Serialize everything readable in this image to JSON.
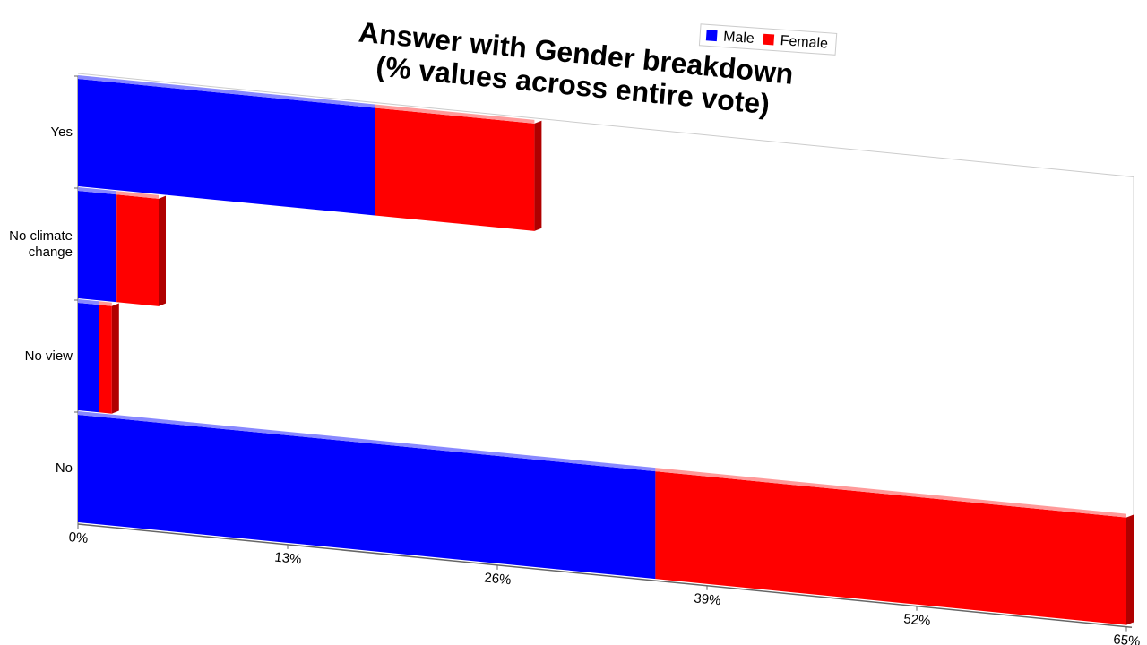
{
  "chart_data": {
    "type": "bar",
    "orientation": "horizontal",
    "stacked": true,
    "title": [
      "Answer with Gender breakdown",
      "(% values across entire vote)"
    ],
    "categories": [
      "Yes",
      "No climate change",
      "No view",
      "No"
    ],
    "series": [
      {
        "name": "Male",
        "color": "#0000ff",
        "values": [
          18.4,
          2.4,
          1.3,
          35.8
        ]
      },
      {
        "name": "Female",
        "color": "#ff0000",
        "values": [
          9.9,
          2.6,
          0.8,
          29.2
        ]
      }
    ],
    "xlim": [
      0,
      65
    ],
    "xticks": [
      {
        "value": 0,
        "label": "0%"
      },
      {
        "value": 13,
        "label": "13%"
      },
      {
        "value": 26,
        "label": "26%"
      },
      {
        "value": 39,
        "label": "39%"
      },
      {
        "value": 52,
        "label": "52%"
      },
      {
        "value": 65,
        "label": "65%"
      }
    ],
    "legend": "top"
  }
}
